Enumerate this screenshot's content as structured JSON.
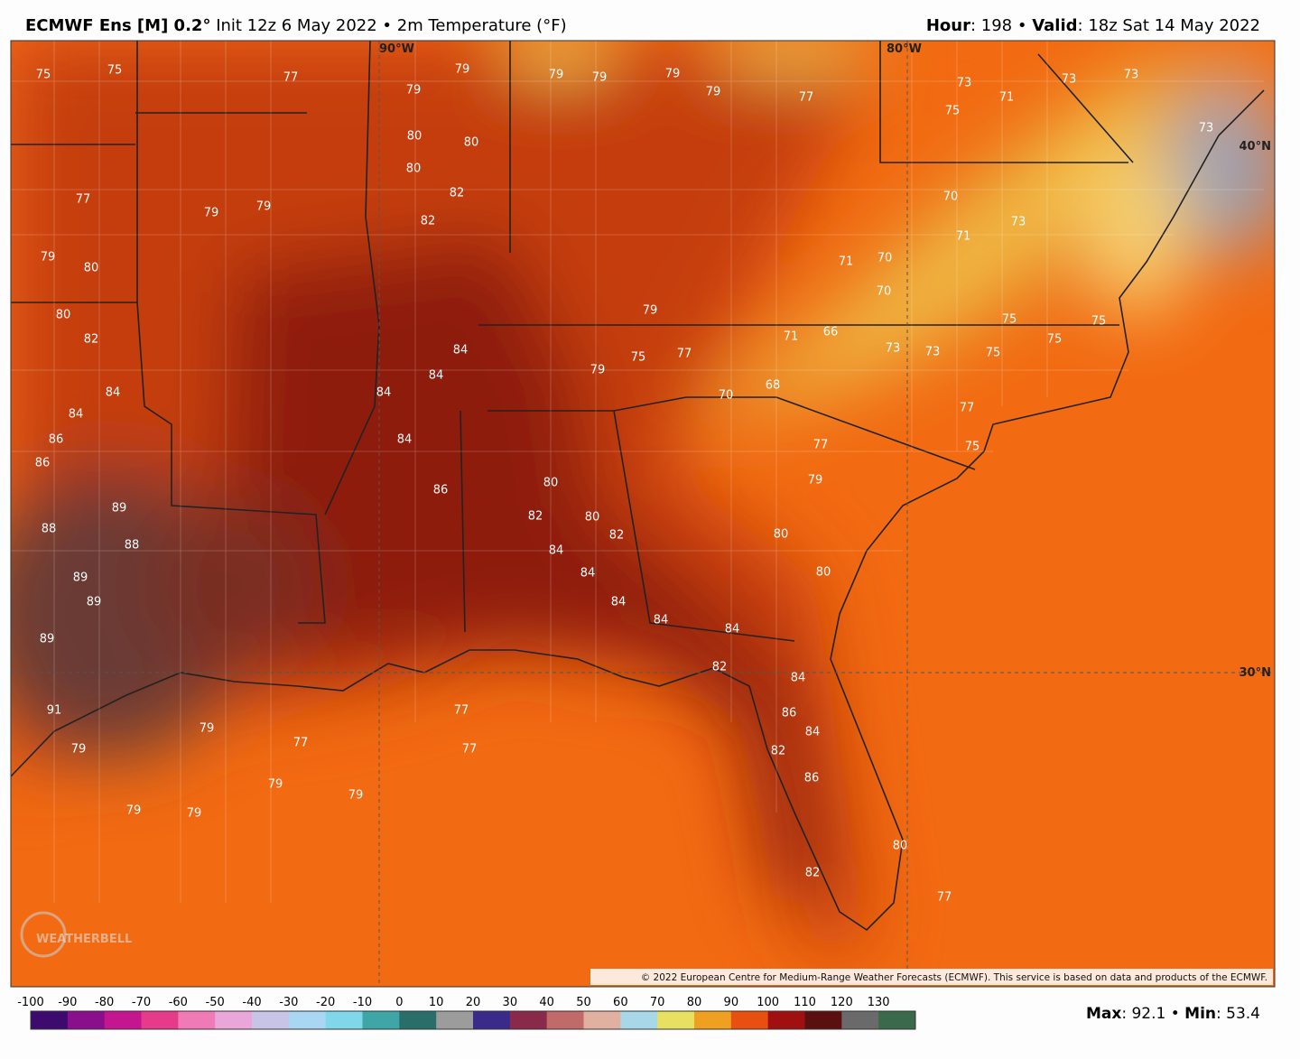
{
  "header": {
    "title_bold": "ECMWF Ens [M] 0.2°",
    "title_rest": "Init 12z 6 May 2022 • 2m Temperature (°F)",
    "hour_label": "Hour",
    "hour": ": 198 •",
    "valid_label": "Valid",
    "valid": ": 18z Sat 14 May 2022"
  },
  "map": {
    "grid_labels": [
      "90°W",
      "80°W",
      "40°N",
      "30°N"
    ],
    "station_values": [
      75,
      75,
      77,
      79,
      79,
      79,
      79,
      79,
      77,
      73,
      71,
      73,
      73,
      73,
      75,
      79,
      80,
      80,
      80,
      82,
      82,
      77,
      79,
      79,
      80,
      79,
      80,
      82,
      84,
      84,
      86,
      86,
      88,
      89,
      88,
      89,
      89,
      89,
      91,
      79,
      79,
      77,
      79,
      79,
      79,
      79,
      77,
      77,
      84,
      84,
      84,
      84,
      86,
      84,
      84,
      84,
      82,
      80,
      80,
      82,
      84,
      84,
      84,
      86,
      86,
      84,
      82,
      80,
      79,
      79,
      75,
      77,
      70,
      68,
      71,
      66,
      73,
      73,
      70,
      71,
      70,
      70,
      73,
      71,
      75,
      75,
      75,
      75,
      77,
      75,
      77,
      79,
      80,
      80,
      82,
      82,
      77
    ],
    "copyright": "© 2022 European Centre for Medium-Range Weather Forecasts (ECMWF). This service is based on data and products of the ECMWF.",
    "watermark": "WEATHERBELL"
  },
  "colorbar": {
    "ticks": [
      -100,
      -90,
      -80,
      -70,
      -60,
      -50,
      -40,
      -30,
      -20,
      -10,
      0,
      10,
      20,
      30,
      40,
      50,
      60,
      70,
      80,
      90,
      100,
      110,
      120,
      130
    ],
    "colors": [
      "#3d0a6e",
      "#8a0f8c",
      "#c4168f",
      "#e63a8a",
      "#f07ab5",
      "#e9a6d8",
      "#c7c4e6",
      "#a9d6f2",
      "#7fd8ea",
      "#3ea6a6",
      "#2a6e6a",
      "#9c9c9c",
      "#3a2a8a",
      "#8a2a4a",
      "#c06a6a",
      "#e0b0a0",
      "#a8d8e8",
      "#e8e060",
      "#f0a020",
      "#e85010",
      "#a01010",
      "#5a1010",
      "#6a6a6a",
      "#3a6a4a"
    ]
  },
  "stats": {
    "max_label": "Max",
    "max": ": 92.1 •",
    "min_label": "Min",
    "min": ": 53.4"
  }
}
